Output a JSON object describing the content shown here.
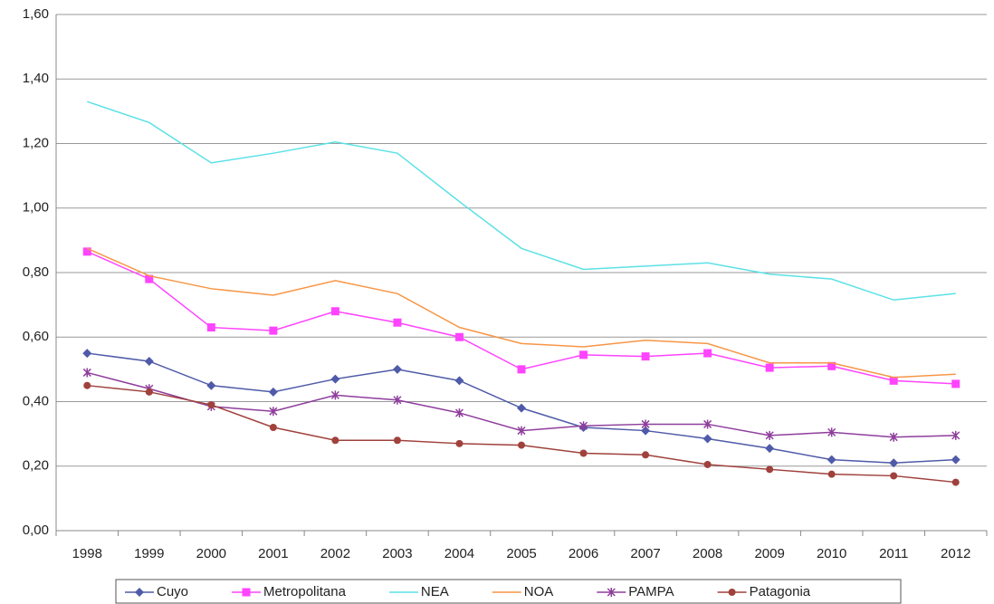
{
  "chart_data": {
    "type": "line",
    "categories": [
      "1998",
      "1999",
      "2000",
      "2001",
      "2002",
      "2003",
      "2004",
      "2005",
      "2006",
      "2007",
      "2008",
      "2009",
      "2010",
      "2011",
      "2012"
    ],
    "series": [
      {
        "name": "Cuyo",
        "color": "#4f5ba8",
        "marker": "diamond",
        "values": [
          0.55,
          0.525,
          0.45,
          0.43,
          0.47,
          0.5,
          0.465,
          0.38,
          0.32,
          0.31,
          0.285,
          0.255,
          0.22,
          0.21,
          0.22
        ]
      },
      {
        "name": "Metropolitana",
        "color": "#ff44ff",
        "marker": "square",
        "values": [
          0.865,
          0.78,
          0.63,
          0.62,
          0.68,
          0.645,
          0.6,
          0.5,
          0.545,
          0.54,
          0.55,
          0.505,
          0.51,
          0.465,
          0.455
        ]
      },
      {
        "name": "NEA",
        "color": "#5ce1e6",
        "marker": "none",
        "values": [
          1.33,
          1.265,
          1.14,
          1.17,
          1.205,
          1.17,
          1.02,
          0.875,
          0.81,
          0.82,
          0.83,
          0.795,
          0.78,
          0.715,
          0.735
        ]
      },
      {
        "name": "NOA",
        "color": "#f79646",
        "marker": "none",
        "values": [
          0.875,
          0.79,
          0.75,
          0.73,
          0.775,
          0.735,
          0.63,
          0.58,
          0.57,
          0.59,
          0.58,
          0.52,
          0.52,
          0.475,
          0.485
        ]
      },
      {
        "name": "PAMPA",
        "color": "#8e3e9c",
        "marker": "star",
        "values": [
          0.49,
          0.44,
          0.385,
          0.37,
          0.42,
          0.405,
          0.365,
          0.31,
          0.325,
          0.33,
          0.33,
          0.295,
          0.305,
          0.29,
          0.295
        ]
      },
      {
        "name": "Patagonia",
        "color": "#a0413c",
        "marker": "circle",
        "values": [
          0.45,
          0.43,
          0.39,
          0.32,
          0.28,
          0.28,
          0.27,
          0.265,
          0.24,
          0.235,
          0.205,
          0.19,
          0.175,
          0.17,
          0.15
        ]
      }
    ],
    "ylim": [
      0,
      1.6
    ],
    "yticks": [
      {
        "value": 0,
        "label": "0,00"
      },
      {
        "value": 0.2,
        "label": "0,20"
      },
      {
        "value": 0.4,
        "label": "0,40"
      },
      {
        "value": 0.6,
        "label": "0,60"
      },
      {
        "value": 0.8,
        "label": "0,80"
      },
      {
        "value": 1.0,
        "label": "1,00"
      },
      {
        "value": 1.2,
        "label": "1,20"
      },
      {
        "value": 1.4,
        "label": "1,40"
      },
      {
        "value": 1.6,
        "label": "1,60"
      }
    ],
    "grid": true,
    "legend": "bottom"
  }
}
